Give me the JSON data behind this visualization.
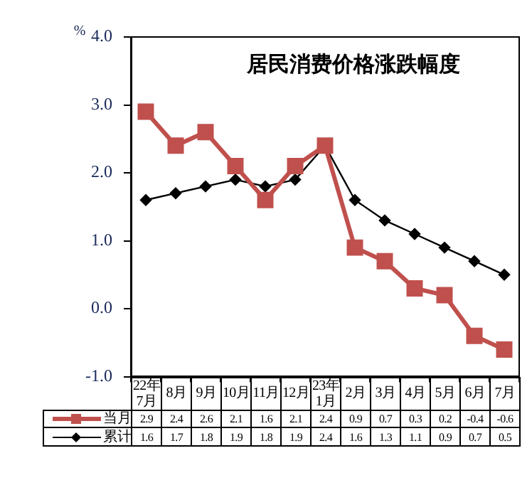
{
  "chart_data": {
    "type": "line",
    "title": "居民消费价格涨跌幅度",
    "ylabel": "%",
    "categories": [
      "22年7月",
      "8月",
      "9月",
      "10月",
      "11月",
      "12月",
      "23年1月",
      "2月",
      "3月",
      "4月",
      "5月",
      "6月",
      "7月"
    ],
    "series": [
      {
        "name": "当月",
        "color": "#c0504d",
        "marker": "square",
        "values": [
          2.9,
          2.4,
          2.6,
          2.1,
          1.6,
          2.1,
          2.4,
          0.9,
          0.7,
          0.3,
          0.2,
          -0.4,
          -0.6
        ]
      },
      {
        "name": "累计",
        "color": "#000000",
        "marker": "diamond",
        "values": [
          1.6,
          1.7,
          1.8,
          1.9,
          1.8,
          1.9,
          2.4,
          1.6,
          1.3,
          1.1,
          0.9,
          0.7,
          0.5
        ]
      }
    ],
    "ylim": [
      -1,
      4
    ],
    "yticks": [
      {
        "value": -1,
        "label": "-1.0"
      },
      {
        "value": 0,
        "label": "0.0"
      },
      {
        "value": 1,
        "label": "1.0"
      },
      {
        "value": 2,
        "label": "2.0"
      },
      {
        "value": 3,
        "label": "3.0"
      },
      {
        "value": 4,
        "label": "4.0"
      }
    ],
    "grid": false,
    "legend": "bottom",
    "data_labels": true
  }
}
